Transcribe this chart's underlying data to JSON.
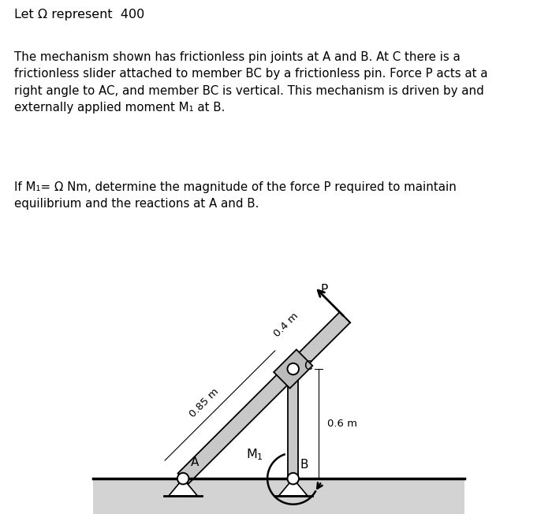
{
  "title_line1": "Let Ω represent  400",
  "para1": "The mechanism shown has frictionless pin joints at A and B. At C there is a\nfrictionless slider attached to member BC by a frictionless pin. Force P acts at a\nright angle to AC, and member BC is vertical. This mechanism is driven by and\nexternally applied moment M₁ at B.",
  "para2": "If M₁= Ω Nm, determine the magnitude of the force P required to maintain\nequilibrium and the reactions at A and B.",
  "bg_color": "#ffffff",
  "member_color": "#c8c8c8",
  "member_edge": "#000000",
  "label_A": "A",
  "label_B": "B",
  "label_C": "C",
  "label_P": "P",
  "dim_AC": "0.85 m",
  "dim_BC": "0.6 m",
  "dim_CP": "0.4 m",
  "text_color": "#000000",
  "ground_color": "#d3d3d3",
  "scale": 3.2,
  "Bx": 3.8,
  "By": 0.72,
  "BC_m": 0.6,
  "AC_m": 0.85,
  "CP_m": 0.4
}
